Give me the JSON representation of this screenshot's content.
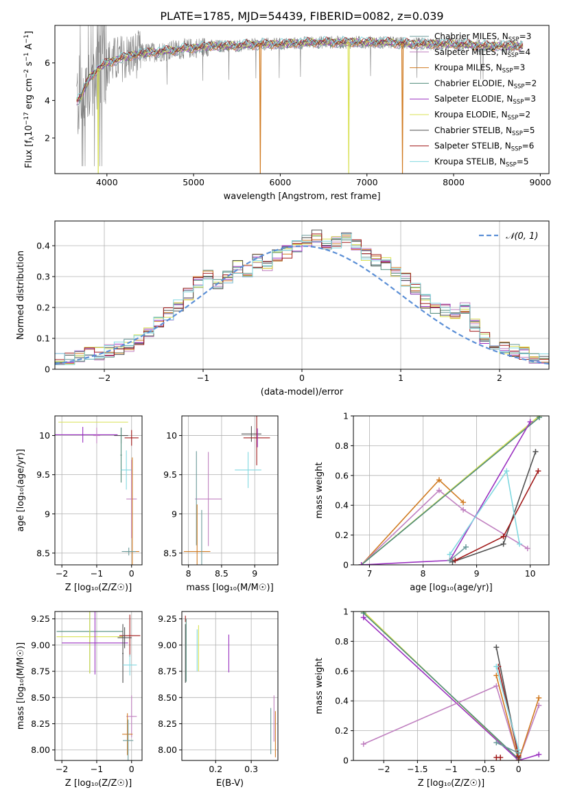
{
  "figure_title": "PLATE=1785, MJD=54439, FIBERID=0082, z=0.039",
  "colors": [
    "#6a9a9a",
    "#c080c0",
    "#d07a20",
    "#4e8a78",
    "#9a30c0",
    "#d8e050",
    "#505050",
    "#a01818",
    "#80d8e0"
  ],
  "model_labels": [
    "Chabrier MILES, N",
    "Salpeter MILES, N",
    "Kroupa MILES, N",
    "Chabrier ELODIE, N",
    "Salpeter ELODIE, N",
    "Kroupa ELODIE, N",
    "Chabrier STELIB, N",
    "Salpeter STELIB, N",
    "Kroupa STELIB, N"
  ],
  "nssp_sub": "SSP",
  "nssp_values": [
    "3",
    "4",
    "3",
    "2",
    "3",
    "2",
    "5",
    "6",
    "5"
  ],
  "chart_data": [
    {
      "id": "spectrum",
      "type": "line",
      "xlabel": "wavelength [Angstrom, rest frame]",
      "ylabel_parts": [
        "Flux [f",
        "λ",
        "10",
        "−17",
        " erg cm",
        "−2",
        " s",
        "−1",
        " A",
        "−1",
        "]"
      ],
      "xlim": [
        3400,
        9100
      ],
      "ylim": [
        0.1,
        8.0
      ],
      "xticks": [
        4000,
        5000,
        6000,
        7000,
        8000,
        9000
      ],
      "yticks": [
        2,
        4,
        6
      ],
      "grid": false,
      "legend": "right",
      "data_color": "#808080",
      "continuum": {
        "x": [
          3650,
          3700,
          3800,
          3900,
          4000,
          4200,
          4400,
          4600,
          4800,
          5000,
          5200,
          5400,
          5600,
          5800,
          6000,
          6200,
          6400,
          6600,
          6800,
          7000,
          7200,
          7400,
          7600,
          7800,
          8000,
          8200,
          8400,
          8600,
          8800
        ],
        "y": [
          4.0,
          4.2,
          5.2,
          5.7,
          6.0,
          6.3,
          6.5,
          6.6,
          6.7,
          6.8,
          6.9,
          6.9,
          6.95,
          7.0,
          7.0,
          7.05,
          7.1,
          7.1,
          7.1,
          7.1,
          7.1,
          7.05,
          7.0,
          7.0,
          7.0,
          6.95,
          6.9,
          6.9,
          6.9
        ]
      },
      "absorption_spikes": [
        {
          "x": 5770,
          "y": 0.1,
          "series": 2
        },
        {
          "x": 6790,
          "y": 0.1,
          "series": 5
        },
        {
          "x": 7410,
          "y": 0.1,
          "series": 2
        },
        {
          "x": 3900,
          "y": 0.1,
          "series": 5
        }
      ]
    },
    {
      "id": "residuals",
      "type": "line",
      "xlabel": "(data-model)/error",
      "ylabel": "Normed distribution",
      "xlim": [
        -2.5,
        2.5
      ],
      "ylim": [
        0.0,
        0.48
      ],
      "xticks": [
        -2,
        -1,
        0,
        1,
        2
      ],
      "yticks": [
        0.0,
        0.1,
        0.2,
        0.3,
        0.4
      ],
      "grid": true,
      "legend": "top-right",
      "normal_label": "𝒩(0, 1)",
      "normal_color": "#5b8fd6",
      "bin_width": 0.1,
      "hist_base": [
        0.03,
        0.03,
        0.04,
        0.05,
        0.05,
        0.06,
        0.07,
        0.08,
        0.1,
        0.12,
        0.15,
        0.18,
        0.21,
        0.24,
        0.28,
        0.3,
        0.27,
        0.3,
        0.33,
        0.32,
        0.35,
        0.34,
        0.37,
        0.38,
        0.4,
        0.42,
        0.43,
        0.4,
        0.41,
        0.42,
        0.4,
        0.37,
        0.35,
        0.34,
        0.32,
        0.29,
        0.26,
        0.22,
        0.2,
        0.19,
        0.18,
        0.2,
        0.14,
        0.1,
        0.08,
        0.07,
        0.06,
        0.05,
        0.04,
        0.03
      ]
    },
    {
      "id": "age-vs-Z",
      "type": "scatter",
      "xlabel": "Z [log₁₀(Z/Z☉)]",
      "ylabel": "age  [log₁₀(age/yr)]",
      "xlim": [
        -2.2,
        0.3
      ],
      "ylim": [
        8.35,
        10.25
      ],
      "xticks": [
        -2,
        -1,
        0
      ],
      "yticks": [
        8.5,
        9.0,
        9.5,
        10.0
      ],
      "grid": true,
      "points": [
        {
          "s": 5,
          "x": -1.1,
          "y": 10.17,
          "xerr": 1.0,
          "yerr": 0.0
        },
        {
          "s": 4,
          "x": -1.4,
          "y": 10.01,
          "xerr": 1.0,
          "yerr": 0.1
        },
        {
          "s": 1,
          "x": -1.0,
          "y": 10.0,
          "xerr": 0.1,
          "yerr": 0.1
        },
        {
          "s": 6,
          "x": -0.3,
          "y": 10.0,
          "xerr": 0.2,
          "yerr": 0.1
        },
        {
          "s": 7,
          "x": 0.0,
          "y": 9.97,
          "xerr": 0.2,
          "yerr": 0.1
        },
        {
          "s": 3,
          "x": -0.3,
          "y": 9.75,
          "xerr": 0.02,
          "yerr": 0.35
        },
        {
          "s": 8,
          "x": -0.15,
          "y": 9.56,
          "xerr": 0.15,
          "yerr": 0.25
        },
        {
          "s": 1,
          "x": 0.0,
          "y": 9.19,
          "xerr": 0.15,
          "yerr": 0.5
        },
        {
          "s": 2,
          "x": 0.02,
          "y": 8.52,
          "xerr": 0.2,
          "yerr": 1.2
        },
        {
          "s": 0,
          "x": -0.08,
          "y": 8.52,
          "xerr": 0.2,
          "yerr": 0.05
        }
      ]
    },
    {
      "id": "age-vs-mass",
      "type": "scatter",
      "xlabel": "mass [log₁₀(M/M☉)]",
      "xlim": [
        7.9,
        9.35
      ],
      "ylim": [
        8.35,
        10.25
      ],
      "xticks": [
        8.0,
        8.5,
        9.0
      ],
      "yticks": [
        8.5,
        9.0,
        9.5,
        10.0
      ],
      "grid": true,
      "points": [
        {
          "s": 6,
          "x": 8.95,
          "y": 10.02,
          "xerr": 0.15,
          "yerr": 0.1
        },
        {
          "s": 7,
          "x": 9.03,
          "y": 9.97,
          "xerr": 0.2,
          "yerr": 0.35
        },
        {
          "s": 4,
          "x": 9.04,
          "y": 9.97,
          "xerr": 0.0,
          "yerr": 0.12
        },
        {
          "s": 8,
          "x": 8.9,
          "y": 9.56,
          "xerr": 0.2,
          "yerr": 0.23
        },
        {
          "s": 1,
          "x": 8.3,
          "y": 9.19,
          "xerr": 0.2,
          "yerr": 0.6
        },
        {
          "s": 0,
          "x": 8.12,
          "y": 9.2,
          "xerr": 0.0,
          "yerr": 0.6
        },
        {
          "s": 2,
          "x": 8.13,
          "y": 8.52,
          "xerr": 0.2,
          "yerr": 0.6
        },
        {
          "s": 0,
          "x": 8.2,
          "y": 8.5,
          "xerr": 0.0,
          "yerr": 0.55
        }
      ]
    },
    {
      "id": "mass-weight-vs-age",
      "type": "line",
      "xlabel": "age  [log₁₀(age/yr)]",
      "ylabel": "mass weight",
      "xlim": [
        6.7,
        10.35
      ],
      "ylim": [
        0.0,
        1.0
      ],
      "xticks": [
        7,
        8,
        9,
        10
      ],
      "yticks": [
        0.0,
        0.2,
        0.4,
        0.6,
        0.8,
        1.0
      ],
      "grid": true,
      "series": [
        {
          "s": 2,
          "x": [
            6.85,
            8.3,
            8.75
          ],
          "y": [
            0.0,
            0.57,
            0.42
          ]
        },
        {
          "s": 1,
          "x": [
            6.85,
            8.3,
            8.75,
            9.95
          ],
          "y": [
            0.0,
            0.5,
            0.37,
            0.11
          ]
        },
        {
          "s": 5,
          "x": [
            6.85,
            10.17
          ],
          "y": [
            0.0,
            1.0
          ]
        },
        {
          "s": 3,
          "x": [
            6.85,
            10.17
          ],
          "y": [
            0.0,
            0.99
          ]
        },
        {
          "s": 4,
          "x": [
            6.85,
            8.5,
            10.0
          ],
          "y": [
            0.0,
            0.03,
            0.96
          ]
        },
        {
          "s": 6,
          "x": [
            8.55,
            9.5,
            10.1
          ],
          "y": [
            0.02,
            0.14,
            0.76
          ]
        },
        {
          "s": 7,
          "x": [
            8.6,
            9.5,
            10.15
          ],
          "y": [
            0.03,
            0.19,
            0.63
          ]
        },
        {
          "s": 8,
          "x": [
            8.5,
            9.56,
            9.8
          ],
          "y": [
            0.07,
            0.63,
            0.14
          ]
        },
        {
          "s": 0,
          "x": [
            8.5,
            8.8
          ],
          "y": [
            0.03,
            0.12
          ]
        }
      ]
    },
    {
      "id": "mass-vs-Z",
      "type": "scatter",
      "xlabel": "Z [log₁₀(Z/Z☉)]",
      "ylabel": "mass [log₁₀(M/M☉)]",
      "xlim": [
        -2.2,
        0.3
      ],
      "ylim": [
        7.9,
        9.32
      ],
      "xticks": [
        -2,
        -1,
        0
      ],
      "yticks": [
        8.0,
        8.25,
        8.5,
        8.75,
        9.0,
        9.25
      ],
      "grid": true,
      "points": [
        {
          "s": 3,
          "x": -1.2,
          "y": 9.13,
          "xerr": 0.95,
          "yerr": 0.4
        },
        {
          "s": 5,
          "x": -1.2,
          "y": 9.08,
          "xerr": 0.95,
          "yerr": 0.35
        },
        {
          "s": 4,
          "x": -1.05,
          "y": 9.02,
          "xerr": 0.95,
          "yerr": 0.3
        },
        {
          "s": 7,
          "x": -0.05,
          "y": 9.09,
          "xerr": 0.3,
          "yerr": 0.2
        },
        {
          "s": 6,
          "x": -0.2,
          "y": 9.07,
          "xerr": 0.2,
          "yerr": 0.1
        },
        {
          "s": 6,
          "x": -0.25,
          "y": 8.92,
          "xerr": 0.02,
          "yerr": 0.28
        },
        {
          "s": 8,
          "x": -0.05,
          "y": 8.81,
          "xerr": 0.2,
          "yerr": 0.1
        },
        {
          "s": 1,
          "x": 0.0,
          "y": 8.32,
          "xerr": 0.15,
          "yerr": 0.2
        },
        {
          "s": 2,
          "x": -0.12,
          "y": 8.15,
          "xerr": 0.15,
          "yerr": 0.2
        },
        {
          "s": 0,
          "x": -0.1,
          "y": 8.09,
          "xerr": 0.15,
          "yerr": 0.2
        }
      ]
    },
    {
      "id": "mass-vs-ebv",
      "type": "scatter",
      "xlabel": "E(B-V)",
      "xlim": [
        0.105,
        0.375
      ],
      "ylim": [
        7.9,
        9.32
      ],
      "xticks": [
        0.2,
        0.3
      ],
      "yticks": [
        8.0,
        8.25,
        8.5,
        8.75,
        9.0,
        9.25
      ],
      "grid": true,
      "points": [
        {
          "s": 7,
          "x": 0.115,
          "y": 9.25,
          "xerr": 0.0,
          "yerr": 0.03
        },
        {
          "s": 6,
          "x": 0.115,
          "y": 8.92,
          "xerr": 0.0,
          "yerr": 0.28
        },
        {
          "s": 3,
          "x": 0.117,
          "y": 8.95,
          "xerr": 0.0,
          "yerr": 0.3
        },
        {
          "s": 5,
          "x": 0.152,
          "y": 8.97,
          "xerr": 0.0,
          "yerr": 0.22
        },
        {
          "s": 8,
          "x": 0.148,
          "y": 8.95,
          "xerr": 0.0,
          "yerr": 0.2
        },
        {
          "s": 4,
          "x": 0.237,
          "y": 8.92,
          "xerr": 0.0,
          "yerr": 0.18
        },
        {
          "s": 0,
          "x": 0.355,
          "y": 8.18,
          "xerr": 0.0,
          "yerr": 0.22
        },
        {
          "s": 1,
          "x": 0.364,
          "y": 8.3,
          "xerr": 0.0,
          "yerr": 0.22
        },
        {
          "s": 2,
          "x": 0.368,
          "y": 8.15,
          "xerr": 0.0,
          "yerr": 0.22
        }
      ]
    },
    {
      "id": "mass-weight-vs-Z",
      "type": "line",
      "xlabel": "Z [log₁₀(Z/Z☉)]",
      "ylabel": "mass weight",
      "xlim": [
        -2.45,
        0.45
      ],
      "ylim": [
        0.0,
        1.0
      ],
      "xticks": [
        -2.0,
        -1.5,
        -1.0,
        -0.5,
        0.0
      ],
      "yticks": [
        0.0,
        0.2,
        0.4,
        0.6,
        0.8,
        1.0
      ],
      "grid": true,
      "series": [
        {
          "s": 5,
          "x": [
            -2.3,
            0.0
          ],
          "y": [
            1.0,
            0.0
          ]
        },
        {
          "s": 3,
          "x": [
            -2.3,
            0.0
          ],
          "y": [
            0.99,
            0.01
          ]
        },
        {
          "s": 4,
          "x": [
            -2.3,
            0.0,
            0.3
          ],
          "y": [
            0.96,
            0.0,
            0.04
          ]
        },
        {
          "s": 1,
          "x": [
            -2.3,
            -0.33,
            0.0,
            0.3
          ],
          "y": [
            0.11,
            0.5,
            0.0,
            0.37
          ]
        },
        {
          "s": 2,
          "x": [
            -0.33,
            0.0,
            0.3
          ],
          "y": [
            0.57,
            0.0,
            0.42
          ]
        },
        {
          "s": 6,
          "x": [
            -0.33,
            0.0
          ],
          "y": [
            0.76,
            0.02
          ]
        },
        {
          "s": 7,
          "x": [
            -0.3,
            0.0
          ],
          "y": [
            0.63,
            0.03
          ]
        },
        {
          "s": 8,
          "x": [
            -0.33,
            0.0
          ],
          "y": [
            0.63,
            0.07
          ]
        },
        {
          "s": 0,
          "x": [
            -0.33,
            0.0
          ],
          "y": [
            0.12,
            0.05
          ]
        },
        {
          "s": 7,
          "x": [
            -0.33,
            -0.27
          ],
          "y": [
            0.02,
            0.02
          ]
        }
      ]
    }
  ]
}
